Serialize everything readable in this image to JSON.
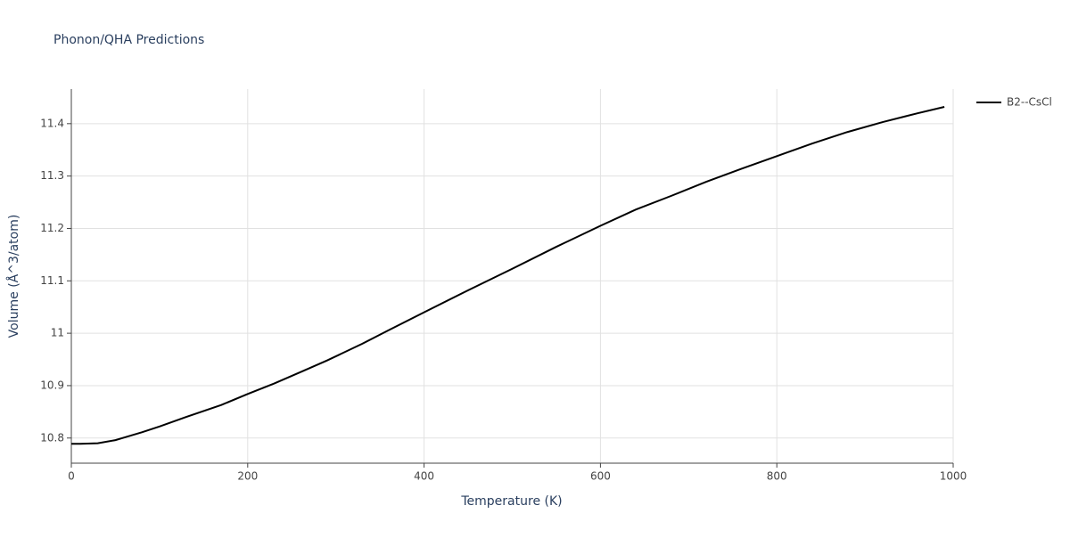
{
  "chart_data": {
    "type": "line",
    "title": "Phonon/QHA Predictions",
    "x_label": "Temperature (K)",
    "y_label": "Volume (Å^3/atom)",
    "x": [
      0,
      10,
      30,
      50,
      60,
      80,
      100,
      130,
      170,
      200,
      230,
      260,
      290,
      330,
      360,
      400,
      450,
      500,
      550,
      600,
      640,
      680,
      720,
      760,
      800,
      840,
      880,
      920,
      960,
      990
    ],
    "series": [
      {
        "name": "B2--CsCl",
        "color": "#000000",
        "values": [
          10.789,
          10.789,
          10.79,
          10.796,
          10.801,
          10.811,
          10.822,
          10.84,
          10.863,
          10.884,
          10.904,
          10.926,
          10.948,
          10.98,
          11.006,
          11.04,
          11.082,
          11.123,
          11.165,
          11.205,
          11.236,
          11.262,
          11.289,
          11.314,
          11.338,
          11.362,
          11.384,
          11.403,
          11.42,
          11.432
        ]
      }
    ],
    "xlim": [
      0,
      1000
    ],
    "xticks": [
      0,
      200,
      400,
      600,
      800,
      1000
    ],
    "ylim": [
      10.752,
      11.466
    ],
    "yticks": [
      10.8,
      10.9,
      11,
      11.1,
      11.2,
      11.3,
      11.4
    ],
    "grid": true,
    "legend_position": "top-right"
  }
}
